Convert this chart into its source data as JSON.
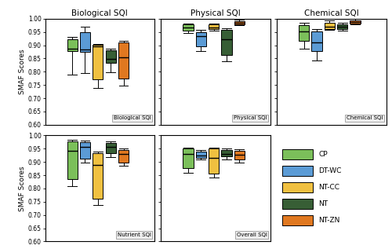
{
  "treatments": [
    "CP",
    "DT-WC",
    "NT-CC",
    "NT",
    "NT-ZN"
  ],
  "colors": [
    "#7BBF5A",
    "#5B9BD5",
    "#F0C040",
    "#375E35",
    "#E07820"
  ],
  "ylim": [
    0.6,
    1.0
  ],
  "yticks": [
    0.6,
    0.65,
    0.7,
    0.75,
    0.8,
    0.85,
    0.9,
    0.95,
    1.0
  ],
  "ylabel": "SMAF Scores",
  "box_data": {
    "Biological SQI": {
      "CP": {
        "q1": 0.878,
        "median": 0.888,
        "q3": 0.923,
        "whislo": 0.79,
        "whishi": 0.93
      },
      "DT-WC": {
        "q1": 0.875,
        "median": 0.885,
        "q3": 0.948,
        "whislo": 0.795,
        "whishi": 0.97
      },
      "NT-CC": {
        "q1": 0.77,
        "median": 0.895,
        "q3": 0.902,
        "whislo": 0.738,
        "whishi": 0.905
      },
      "NT": {
        "q1": 0.835,
        "median": 0.848,
        "q3": 0.882,
        "whislo": 0.798,
        "whishi": 0.888
      },
      "NT-ZN": {
        "q1": 0.775,
        "median": 0.855,
        "q3": 0.91,
        "whislo": 0.748,
        "whishi": 0.915
      }
    },
    "Physical SQI": {
      "CP": {
        "q1": 0.955,
        "median": 0.968,
        "q3": 0.978,
        "whislo": 0.945,
        "whishi": 0.983
      },
      "DT-WC": {
        "q1": 0.895,
        "median": 0.935,
        "q3": 0.95,
        "whislo": 0.878,
        "whishi": 0.958
      },
      "NT-CC": {
        "q1": 0.96,
        "median": 0.967,
        "q3": 0.978,
        "whislo": 0.955,
        "whishi": 0.983
      },
      "NT": {
        "q1": 0.862,
        "median": 0.922,
        "q3": 0.958,
        "whislo": 0.838,
        "whishi": 0.963
      },
      "NT-ZN": {
        "q1": 0.978,
        "median": 0.984,
        "q3": 0.99,
        "whislo": 0.975,
        "whishi": 0.995
      }
    },
    "Chemical SQI": {
      "CP": {
        "q1": 0.915,
        "median": 0.952,
        "q3": 0.975,
        "whislo": 0.888,
        "whishi": 0.985
      },
      "DT-WC": {
        "q1": 0.877,
        "median": 0.91,
        "q3": 0.952,
        "whislo": 0.843,
        "whishi": 0.96
      },
      "NT-CC": {
        "q1": 0.962,
        "median": 0.97,
        "q3": 0.985,
        "whislo": 0.958,
        "whishi": 0.992
      },
      "NT": {
        "q1": 0.96,
        "median": 0.97,
        "q3": 0.98,
        "whislo": 0.955,
        "whishi": 0.985
      },
      "NT-ZN": {
        "q1": 0.982,
        "median": 0.988,
        "q3": 0.993,
        "whislo": 0.978,
        "whishi": 0.998
      }
    },
    "Nutrient SQI": {
      "CP": {
        "q1": 0.835,
        "median": 0.942,
        "q3": 0.978,
        "whislo": 0.808,
        "whishi": 0.983
      },
      "DT-WC": {
        "q1": 0.912,
        "median": 0.958,
        "q3": 0.975,
        "whislo": 0.898,
        "whishi": 0.98
      },
      "NT-CC": {
        "q1": 0.762,
        "median": 0.888,
        "q3": 0.932,
        "whislo": 0.738,
        "whishi": 0.94
      },
      "NT": {
        "q1": 0.932,
        "median": 0.958,
        "q3": 0.972,
        "whislo": 0.918,
        "whishi": 0.978
      },
      "NT-ZN": {
        "q1": 0.898,
        "median": 0.93,
        "q3": 0.945,
        "whislo": 0.885,
        "whishi": 0.952
      }
    },
    "Overall SQI": {
      "CP": {
        "q1": 0.878,
        "median": 0.93,
        "q3": 0.95,
        "whislo": 0.86,
        "whishi": 0.955
      },
      "DT-WC": {
        "q1": 0.915,
        "median": 0.925,
        "q3": 0.94,
        "whislo": 0.908,
        "whishi": 0.945
      },
      "NT-CC": {
        "q1": 0.855,
        "median": 0.915,
        "q3": 0.95,
        "whislo": 0.84,
        "whishi": 0.955
      },
      "NT": {
        "q1": 0.92,
        "median": 0.93,
        "q3": 0.945,
        "whislo": 0.91,
        "whishi": 0.95
      },
      "NT-ZN": {
        "q1": 0.908,
        "median": 0.928,
        "q3": 0.943,
        "whislo": 0.898,
        "whishi": 0.948
      }
    }
  }
}
